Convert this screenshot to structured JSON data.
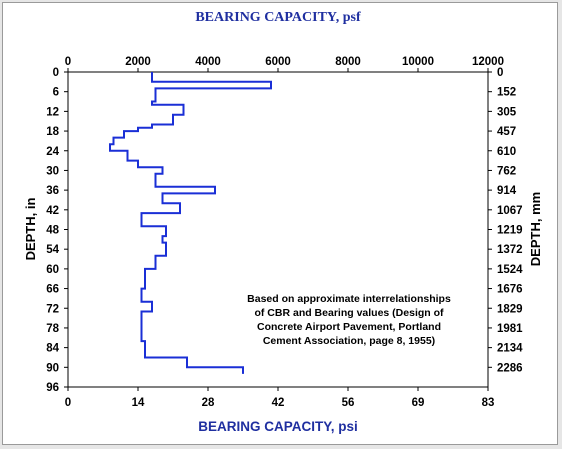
{
  "chart_data": {
    "type": "line",
    "title": "BEARING CAPACITY, psf",
    "xlabel": "BEARING CAPACITY, psi",
    "ylabel_left": "DEPTH, in",
    "ylabel_right": "DEPTH, mm",
    "x_top": {
      "label": "BEARING CAPACITY, psf",
      "ticks": [
        "0",
        "2000",
        "4000",
        "6000",
        "8000",
        "10000",
        "12000"
      ],
      "range": [
        0,
        12000
      ]
    },
    "x_bottom": {
      "label": "BEARING CAPACITY, psi",
      "ticks": [
        "0",
        "14",
        "28",
        "42",
        "56",
        "69",
        "83"
      ],
      "range": [
        0,
        83
      ]
    },
    "y_left": {
      "label": "DEPTH, in",
      "ticks": [
        "0",
        "6",
        "12",
        "18",
        "24",
        "30",
        "36",
        "42",
        "48",
        "54",
        "60",
        "66",
        "72",
        "78",
        "84",
        "90",
        "96"
      ],
      "range": [
        0,
        96
      ]
    },
    "y_right": {
      "label": "DEPTH, mm",
      "ticks": [
        "0",
        "152",
        "305",
        "457",
        "610",
        "762",
        "914",
        "1067",
        "1219",
        "1372",
        "1524",
        "1676",
        "1829",
        "1981",
        "2134",
        "2286"
      ],
      "values_in": [
        0,
        6,
        12,
        18,
        24,
        30,
        36,
        42,
        48,
        54,
        60,
        66,
        72,
        78,
        84,
        90
      ]
    },
    "series": [
      {
        "color": "#1a2fd6",
        "points": [
          [
            2400,
            0
          ],
          [
            2400,
            3
          ],
          [
            5800,
            3
          ],
          [
            5800,
            5
          ],
          [
            2500,
            5
          ],
          [
            2500,
            9
          ],
          [
            2400,
            9
          ],
          [
            2400,
            10
          ],
          [
            3300,
            10
          ],
          [
            3300,
            13
          ],
          [
            3000,
            13
          ],
          [
            3000,
            16
          ],
          [
            2400,
            16
          ],
          [
            2400,
            17
          ],
          [
            2000,
            17
          ],
          [
            2000,
            18
          ],
          [
            1600,
            18
          ],
          [
            1600,
            20
          ],
          [
            1300,
            20
          ],
          [
            1300,
            22
          ],
          [
            1200,
            22
          ],
          [
            1200,
            24
          ],
          [
            1700,
            24
          ],
          [
            1700,
            27
          ],
          [
            2000,
            27
          ],
          [
            2000,
            29
          ],
          [
            2700,
            29
          ],
          [
            2700,
            31
          ],
          [
            2500,
            31
          ],
          [
            2500,
            35
          ],
          [
            4200,
            35
          ],
          [
            4200,
            37
          ],
          [
            2700,
            37
          ],
          [
            2700,
            40
          ],
          [
            3200,
            40
          ],
          [
            3200,
            43
          ],
          [
            2100,
            43
          ],
          [
            2100,
            47
          ],
          [
            2800,
            47
          ],
          [
            2800,
            50
          ],
          [
            2700,
            50
          ],
          [
            2700,
            52
          ],
          [
            2800,
            52
          ],
          [
            2800,
            56
          ],
          [
            2500,
            56
          ],
          [
            2500,
            60
          ],
          [
            2200,
            60
          ],
          [
            2200,
            66
          ],
          [
            2100,
            66
          ],
          [
            2100,
            70
          ],
          [
            2400,
            70
          ],
          [
            2400,
            73
          ],
          [
            2100,
            73
          ],
          [
            2100,
            82
          ],
          [
            2200,
            82
          ],
          [
            2200,
            87
          ],
          [
            3400,
            87
          ],
          [
            3400,
            90
          ],
          [
            5000,
            90
          ],
          [
            5000,
            92
          ]
        ]
      }
    ],
    "annotation": [
      "Based on approximate interrelationships",
      "of CBR and Bearing values (Design of",
      "Concrete Airport Pavement, Portland",
      "Cement Association, page 8, 1955)"
    ],
    "grid": false
  },
  "colors": {
    "title": "#1f2fa0",
    "series": "#1a2fd6",
    "frame": "#9a9a9a",
    "background": "#e6e6e6"
  }
}
